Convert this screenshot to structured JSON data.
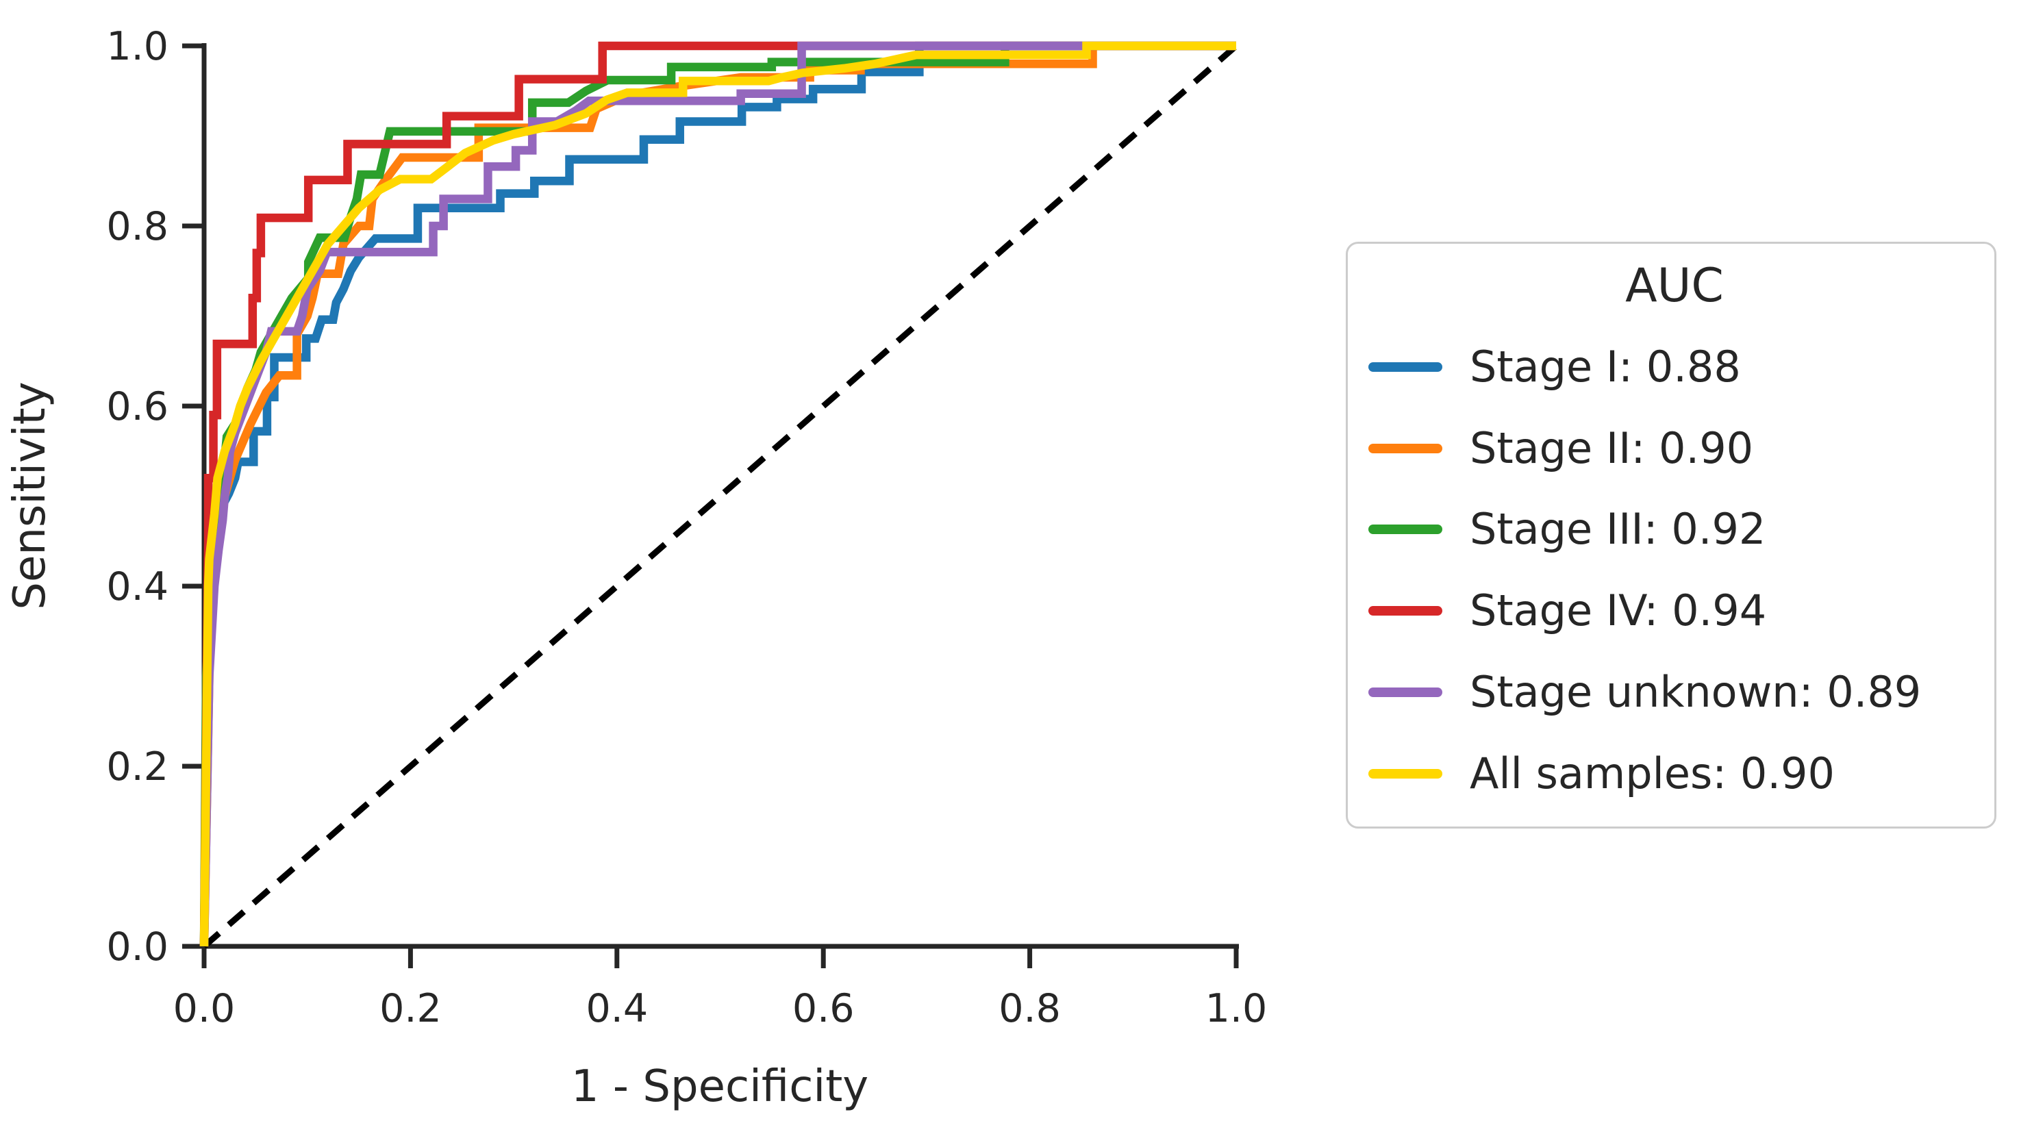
{
  "axes": {
    "x_label": "1 - Specificity",
    "y_label": "Sensitivity",
    "x_tick_labels": [
      "0.0",
      "0.2",
      "0.4",
      "0.6",
      "0.8",
      "1.0"
    ],
    "y_tick_labels": [
      "0.0",
      "0.2",
      "0.4",
      "0.6",
      "0.8",
      "1.0"
    ]
  },
  "legend": {
    "title": "AUC",
    "entries": [
      {
        "label": "Stage I: 0.88",
        "color": "#1f77b4"
      },
      {
        "label": "Stage II: 0.90",
        "color": "#ff7f0e"
      },
      {
        "label": "Stage III: 0.92",
        "color": "#2ca02c"
      },
      {
        "label": "Stage IV: 0.94",
        "color": "#d62728"
      },
      {
        "label": "Stage unknown: 0.89",
        "color": "#9467bd"
      },
      {
        "label": "All samples: 0.90",
        "color": "#ffd700"
      }
    ]
  },
  "chart_data": {
    "type": "line",
    "variant": "roc-step-curves",
    "title": "",
    "xlabel": "1 - Specificity",
    "ylabel": "Sensitivity",
    "xlim": [
      0,
      1
    ],
    "ylim": [
      0,
      1
    ],
    "x_ticks": [
      0.0,
      0.2,
      0.4,
      0.6,
      0.8,
      1.0
    ],
    "y_ticks": [
      0.0,
      0.2,
      0.4,
      0.6,
      0.8,
      1.0
    ],
    "grid": false,
    "legend_position": "right-outside",
    "legend_title": "AUC",
    "axis_color": "#262626",
    "tick_label_color": "#262626",
    "reference_line": {
      "name": "chance-diagonal",
      "style": "dashed",
      "color": "#000000",
      "points": [
        [
          0,
          0
        ],
        [
          1,
          1
        ]
      ]
    },
    "series": [
      {
        "name": "Stage I",
        "auc": "0.88",
        "color": "#1f77b4",
        "points": [
          [
            0,
            0
          ],
          [
            0.003,
            0.25
          ],
          [
            0.004,
            0.33
          ],
          [
            0.008,
            0.4
          ],
          [
            0.01,
            0.44
          ],
          [
            0.013,
            0.47
          ],
          [
            0.018,
            0.49
          ],
          [
            0.024,
            0.503
          ],
          [
            0.03,
            0.52
          ],
          [
            0.033,
            0.538
          ],
          [
            0.048,
            0.538
          ],
          [
            0.048,
            0.572
          ],
          [
            0.061,
            0.572
          ],
          [
            0.061,
            0.61
          ],
          [
            0.068,
            0.61
          ],
          [
            0.068,
            0.654
          ],
          [
            0.099,
            0.654
          ],
          [
            0.099,
            0.675
          ],
          [
            0.108,
            0.675
          ],
          [
            0.114,
            0.696
          ],
          [
            0.125,
            0.696
          ],
          [
            0.128,
            0.715
          ],
          [
            0.135,
            0.73
          ],
          [
            0.142,
            0.75
          ],
          [
            0.15,
            0.765
          ],
          [
            0.166,
            0.786
          ],
          [
            0.207,
            0.786
          ],
          [
            0.207,
            0.82
          ],
          [
            0.287,
            0.82
          ],
          [
            0.287,
            0.836
          ],
          [
            0.32,
            0.836
          ],
          [
            0.32,
            0.85
          ],
          [
            0.354,
            0.85
          ],
          [
            0.354,
            0.874
          ],
          [
            0.426,
            0.874
          ],
          [
            0.426,
            0.896
          ],
          [
            0.461,
            0.896
          ],
          [
            0.461,
            0.916
          ],
          [
            0.521,
            0.916
          ],
          [
            0.521,
            0.932
          ],
          [
            0.555,
            0.932
          ],
          [
            0.555,
            0.941
          ],
          [
            0.59,
            0.941
          ],
          [
            0.59,
            0.952
          ],
          [
            0.637,
            0.952
          ],
          [
            0.637,
            0.971
          ],
          [
            0.693,
            0.971
          ],
          [
            0.693,
            1
          ],
          [
            1,
            1
          ]
        ]
      },
      {
        "name": "Stage II",
        "auc": "0.90",
        "color": "#ff7f0e",
        "points": [
          [
            0,
            0
          ],
          [
            0.006,
            0.36
          ],
          [
            0.007,
            0.43
          ],
          [
            0.008,
            0.452
          ],
          [
            0.015,
            0.452
          ],
          [
            0.017,
            0.47
          ],
          [
            0.02,
            0.5
          ],
          [
            0.03,
            0.54
          ],
          [
            0.045,
            0.58
          ],
          [
            0.06,
            0.615
          ],
          [
            0.073,
            0.634
          ],
          [
            0.09,
            0.634
          ],
          [
            0.09,
            0.68
          ],
          [
            0.1,
            0.7
          ],
          [
            0.105,
            0.72
          ],
          [
            0.11,
            0.747
          ],
          [
            0.13,
            0.747
          ],
          [
            0.135,
            0.78
          ],
          [
            0.15,
            0.8
          ],
          [
            0.16,
            0.8
          ],
          [
            0.163,
            0.83
          ],
          [
            0.175,
            0.85
          ],
          [
            0.192,
            0.876
          ],
          [
            0.266,
            0.876
          ],
          [
            0.266,
            0.909
          ],
          [
            0.374,
            0.909
          ],
          [
            0.38,
            0.93
          ],
          [
            0.41,
            0.945
          ],
          [
            0.46,
            0.955
          ],
          [
            0.52,
            0.965
          ],
          [
            0.587,
            0.965
          ],
          [
            0.587,
            0.973
          ],
          [
            0.636,
            0.973
          ],
          [
            0.636,
            0.98
          ],
          [
            0.861,
            0.98
          ],
          [
            0.861,
            1
          ],
          [
            1,
            1
          ]
        ]
      },
      {
        "name": "Stage III",
        "auc": "0.92",
        "color": "#2ca02c",
        "points": [
          [
            0,
            0
          ],
          [
            0.002,
            0.3
          ],
          [
            0.008,
            0.42
          ],
          [
            0.012,
            0.47
          ],
          [
            0.018,
            0.52
          ],
          [
            0.022,
            0.566
          ],
          [
            0.031,
            0.582
          ],
          [
            0.036,
            0.6
          ],
          [
            0.042,
            0.62
          ],
          [
            0.05,
            0.64
          ],
          [
            0.055,
            0.66
          ],
          [
            0.065,
            0.68
          ],
          [
            0.075,
            0.7
          ],
          [
            0.085,
            0.72
          ],
          [
            0.101,
            0.742
          ],
          [
            0.101,
            0.76
          ],
          [
            0.112,
            0.787
          ],
          [
            0.136,
            0.787
          ],
          [
            0.142,
            0.81
          ],
          [
            0.148,
            0.83
          ],
          [
            0.152,
            0.857
          ],
          [
            0.17,
            0.857
          ],
          [
            0.18,
            0.905
          ],
          [
            0.318,
            0.905
          ],
          [
            0.318,
            0.937
          ],
          [
            0.353,
            0.937
          ],
          [
            0.37,
            0.95
          ],
          [
            0.391,
            0.962
          ],
          [
            0.4526,
            0.962
          ],
          [
            0.4526,
            0.9765
          ],
          [
            0.55,
            0.9765
          ],
          [
            0.55,
            0.982
          ],
          [
            0.776,
            0.982
          ],
          [
            0.776,
            1
          ],
          [
            1,
            1
          ]
        ]
      },
      {
        "name": "Stage IV",
        "auc": "0.94",
        "color": "#d62728",
        "points": [
          [
            0,
            0
          ],
          [
            0.004,
            0.45
          ],
          [
            0.004,
            0.52
          ],
          [
            0.009,
            0.52
          ],
          [
            0.009,
            0.59
          ],
          [
            0.0125,
            0.59
          ],
          [
            0.0125,
            0.669
          ],
          [
            0.047,
            0.669
          ],
          [
            0.047,
            0.72
          ],
          [
            0.051,
            0.72
          ],
          [
            0.051,
            0.77
          ],
          [
            0.055,
            0.77
          ],
          [
            0.055,
            0.809
          ],
          [
            0.101,
            0.809
          ],
          [
            0.101,
            0.851
          ],
          [
            0.139,
            0.851
          ],
          [
            0.139,
            0.891
          ],
          [
            0.235,
            0.891
          ],
          [
            0.235,
            0.922
          ],
          [
            0.305,
            0.922
          ],
          [
            0.305,
            0.963
          ],
          [
            0.386,
            0.963
          ],
          [
            0.386,
            1
          ],
          [
            1,
            1
          ]
        ]
      },
      {
        "name": "Stage unknown",
        "auc": "0.89",
        "color": "#9467bd",
        "points": [
          [
            0,
            0
          ],
          [
            0.005,
            0.3
          ],
          [
            0.01,
            0.4
          ],
          [
            0.014,
            0.44
          ],
          [
            0.018,
            0.473
          ],
          [
            0.02,
            0.5
          ],
          [
            0.023,
            0.521
          ],
          [
            0.025,
            0.549
          ],
          [
            0.03,
            0.57
          ],
          [
            0.04,
            0.6
          ],
          [
            0.05,
            0.63
          ],
          [
            0.06,
            0.66
          ],
          [
            0.065,
            0.683
          ],
          [
            0.09,
            0.683
          ],
          [
            0.095,
            0.7
          ],
          [
            0.1,
            0.73
          ],
          [
            0.112,
            0.75
          ],
          [
            0.119,
            0.771
          ],
          [
            0.222,
            0.771
          ],
          [
            0.222,
            0.8
          ],
          [
            0.232,
            0.8
          ],
          [
            0.232,
            0.83
          ],
          [
            0.275,
            0.83
          ],
          [
            0.275,
            0.866
          ],
          [
            0.302,
            0.866
          ],
          [
            0.302,
            0.884
          ],
          [
            0.318,
            0.884
          ],
          [
            0.318,
            0.916
          ],
          [
            0.342,
            0.916
          ],
          [
            0.36,
            0.928
          ],
          [
            0.373,
            0.939
          ],
          [
            0.52,
            0.939
          ],
          [
            0.52,
            0.947
          ],
          [
            0.579,
            0.947
          ],
          [
            0.579,
            1
          ],
          [
            1,
            1
          ]
        ]
      },
      {
        "name": "All samples",
        "auc": "0.90",
        "color": "#ffd700",
        "points": [
          [
            0,
            0
          ],
          [
            0.004,
            0.4
          ],
          [
            0.005,
            0.43
          ],
          [
            0.007,
            0.45
          ],
          [
            0.01,
            0.48
          ],
          [
            0.013,
            0.52
          ],
          [
            0.02,
            0.55
          ],
          [
            0.03,
            0.58
          ],
          [
            0.035,
            0.6
          ],
          [
            0.042,
            0.62
          ],
          [
            0.055,
            0.65
          ],
          [
            0.065,
            0.67
          ],
          [
            0.08,
            0.7
          ],
          [
            0.09,
            0.72
          ],
          [
            0.1,
            0.74
          ],
          [
            0.11,
            0.76
          ],
          [
            0.12,
            0.78
          ],
          [
            0.135,
            0.8
          ],
          [
            0.15,
            0.82
          ],
          [
            0.17,
            0.84
          ],
          [
            0.19,
            0.852
          ],
          [
            0.22,
            0.852
          ],
          [
            0.235,
            0.865
          ],
          [
            0.253,
            0.881
          ],
          [
            0.28,
            0.895
          ],
          [
            0.3,
            0.902
          ],
          [
            0.34,
            0.912
          ],
          [
            0.37,
            0.925
          ],
          [
            0.39,
            0.94
          ],
          [
            0.41,
            0.948
          ],
          [
            0.464,
            0.948
          ],
          [
            0.464,
            0.961
          ],
          [
            0.547,
            0.961
          ],
          [
            0.56,
            0.965
          ],
          [
            0.58,
            0.97
          ],
          [
            0.62,
            0.975
          ],
          [
            0.65,
            0.98
          ],
          [
            0.69,
            0.99
          ],
          [
            0.855,
            0.99
          ],
          [
            0.855,
            1
          ],
          [
            1,
            1
          ]
        ]
      }
    ]
  }
}
